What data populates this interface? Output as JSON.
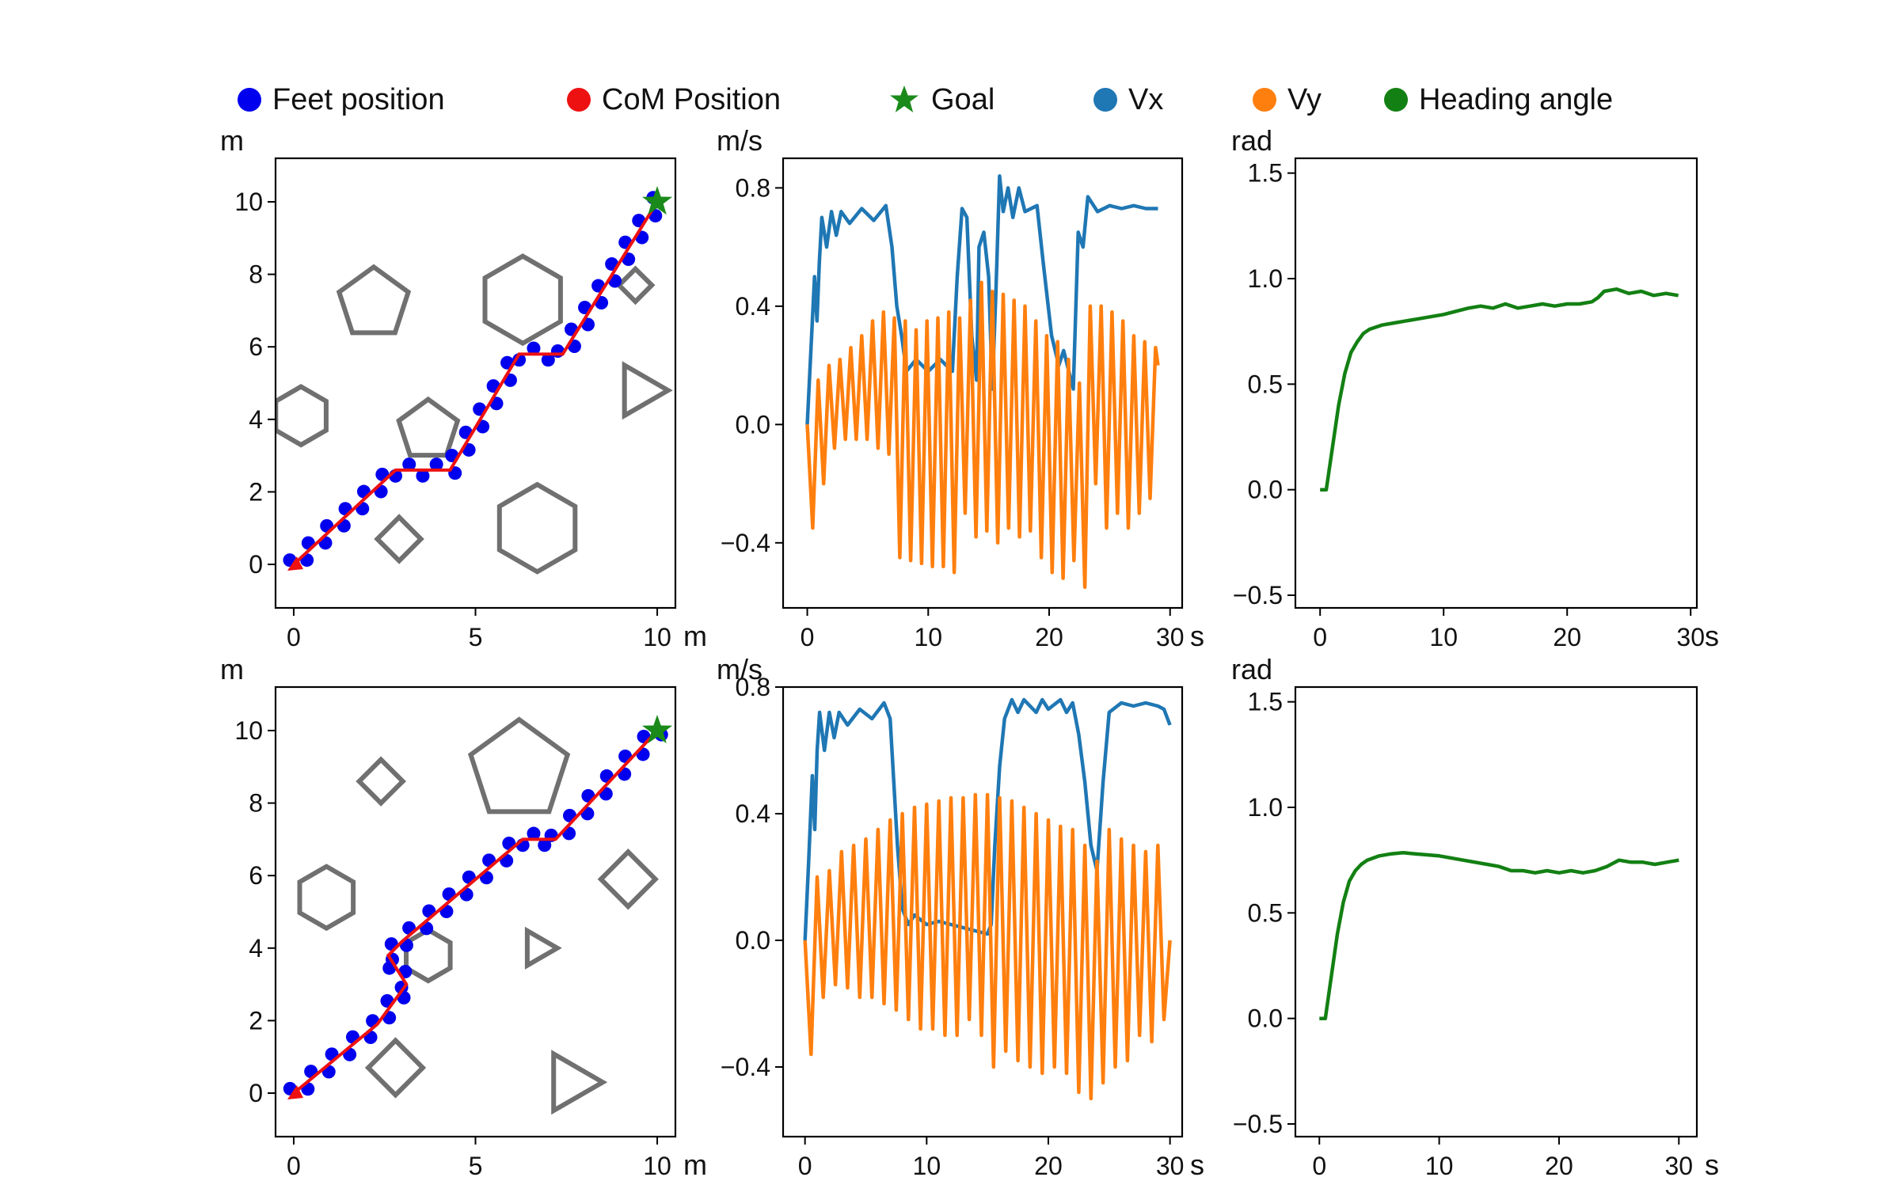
{
  "legend": [
    {
      "key": "feet",
      "label": "Feet position",
      "color": "#0000ee",
      "marker": "circle"
    },
    {
      "key": "com",
      "label": "CoM Position",
      "color": "#ee1111",
      "marker": "circle"
    },
    {
      "key": "goal",
      "label": "Goal",
      "color": "#1a8a1a",
      "marker": "star"
    },
    {
      "key": "vx",
      "label": "Vx",
      "color": "#1f77b4",
      "marker": "circle"
    },
    {
      "key": "vy",
      "label": "Vy",
      "color": "#ff7f0e",
      "marker": "circle"
    },
    {
      "key": "heading",
      "label": "Heading angle",
      "color": "#138013",
      "marker": "circle"
    }
  ],
  "chart_data": [
    {
      "id": "path-top",
      "type": "scatter",
      "title": "",
      "xlabel": "m",
      "ylabel": "m",
      "xlim": [
        -0.5,
        10.5
      ],
      "ylim": [
        -1.2,
        11.2
      ],
      "xticks": [
        0,
        5,
        10
      ],
      "yticks": [
        0,
        2,
        4,
        6,
        8,
        10
      ],
      "goal": [
        10,
        10
      ],
      "waypoints": [
        [
          0,
          0
        ],
        [
          2.8,
          2.6
        ],
        [
          4.3,
          2.6
        ],
        [
          6.2,
          5.8
        ],
        [
          7.4,
          5.8
        ],
        [
          10,
          10
        ]
      ],
      "obstacles": [
        {
          "sides": 5,
          "center": [
            2.2,
            7.2
          ],
          "radius": 1.0
        },
        {
          "sides": 6,
          "center": [
            6.3,
            7.3
          ],
          "radius": 1.2
        },
        {
          "sides": 4,
          "center": [
            9.4,
            7.7
          ],
          "radius": 0.45
        },
        {
          "sides": 6,
          "center": [
            0.2,
            4.1
          ],
          "radius": 0.8
        },
        {
          "sides": 5,
          "center": [
            3.7,
            3.7
          ],
          "radius": 0.85
        },
        {
          "sides": 3,
          "center": [
            9.5,
            4.8
          ],
          "radius": 0.8
        },
        {
          "sides": 4,
          "center": [
            2.9,
            0.7
          ],
          "radius": 0.6
        },
        {
          "sides": 6,
          "center": [
            6.7,
            1.0
          ],
          "radius": 1.2
        }
      ]
    },
    {
      "id": "vel-top",
      "type": "line",
      "title": "",
      "xlabel": "s",
      "ylabel": "m/s",
      "xlim": [
        -2,
        31
      ],
      "ylim": [
        -0.62,
        0.9
      ],
      "xticks": [
        0,
        10,
        20,
        30
      ],
      "yticks": [
        -0.4,
        0.0,
        0.4,
        0.8
      ],
      "series": [
        {
          "name": "Vx",
          "color": "#1f77b4",
          "x": [
            0,
            0.3,
            0.6,
            0.8,
            1,
            1.2,
            1.6,
            2,
            2.4,
            2.8,
            3.5,
            4.5,
            5.5,
            6.5,
            7,
            7.4,
            7.8,
            8.2,
            9,
            10,
            11,
            12,
            12.4,
            12.8,
            13.2,
            13.6,
            14,
            14.2,
            14.6,
            15,
            15.3,
            15.6,
            15.9,
            16.2,
            16.6,
            17,
            17.5,
            18,
            19,
            19.5,
            20.2,
            20.8,
            21.2,
            22,
            22.4,
            22.8,
            23.2,
            24,
            25,
            26,
            27,
            28,
            29
          ],
          "y": [
            0.0,
            0.25,
            0.5,
            0.35,
            0.55,
            0.7,
            0.6,
            0.72,
            0.64,
            0.72,
            0.68,
            0.73,
            0.69,
            0.74,
            0.6,
            0.4,
            0.3,
            0.18,
            0.22,
            0.18,
            0.22,
            0.18,
            0.5,
            0.73,
            0.7,
            0.3,
            0.15,
            0.6,
            0.65,
            0.5,
            0.12,
            0.45,
            0.84,
            0.72,
            0.8,
            0.7,
            0.8,
            0.72,
            0.74,
            0.55,
            0.3,
            0.2,
            0.25,
            0.12,
            0.65,
            0.6,
            0.77,
            0.72,
            0.74,
            0.73,
            0.74,
            0.73,
            0.73
          ]
        },
        {
          "name": "Vy",
          "color": "#ff7f0e",
          "x": [
            0,
            0.45,
            0.9,
            1.35,
            1.8,
            2.25,
            2.7,
            3.15,
            3.6,
            4.05,
            4.5,
            4.95,
            5.4,
            5.85,
            6.3,
            6.75,
            7.2,
            7.65,
            8.1,
            8.55,
            9,
            9.45,
            9.9,
            10.35,
            10.8,
            11.25,
            11.7,
            12.15,
            12.6,
            13.05,
            13.5,
            13.95,
            14.4,
            14.85,
            15.3,
            15.75,
            16.2,
            16.65,
            17.1,
            17.55,
            18,
            18.45,
            18.9,
            19.35,
            19.8,
            20.25,
            20.7,
            21.15,
            21.6,
            22.05,
            22.5,
            22.95,
            23.4,
            23.85,
            24.3,
            24.75,
            25.2,
            25.65,
            26.1,
            26.55,
            27,
            27.45,
            27.9,
            28.35,
            28.8,
            29
          ],
          "y": [
            0.0,
            -0.35,
            0.15,
            -0.2,
            0.2,
            -0.08,
            0.22,
            -0.05,
            0.26,
            -0.05,
            0.3,
            -0.05,
            0.35,
            -0.08,
            0.38,
            -0.1,
            0.36,
            -0.45,
            0.35,
            -0.46,
            0.32,
            -0.47,
            0.35,
            -0.48,
            0.36,
            -0.48,
            0.38,
            -0.5,
            0.36,
            -0.3,
            0.42,
            -0.38,
            0.48,
            -0.36,
            0.45,
            -0.4,
            0.44,
            -0.35,
            0.42,
            -0.38,
            0.4,
            -0.36,
            0.35,
            -0.45,
            0.3,
            -0.5,
            0.28,
            -0.52,
            0.22,
            -0.46,
            0.14,
            -0.55,
            0.4,
            -0.2,
            0.4,
            -0.35,
            0.38,
            -0.3,
            0.35,
            -0.35,
            0.3,
            -0.3,
            0.28,
            -0.25,
            0.26,
            0.2
          ]
        }
      ]
    },
    {
      "id": "head-top",
      "type": "line",
      "title": "",
      "xlabel": "s",
      "ylabel": "rad",
      "xlim": [
        -2,
        30.5
      ],
      "ylim": [
        -0.56,
        1.57
      ],
      "xticks": [
        0,
        10,
        20,
        30
      ],
      "yticks": [
        -0.5,
        0.0,
        0.5,
        1.0,
        1.5
      ],
      "series": [
        {
          "name": "Heading angle",
          "color": "#138013",
          "x": [
            0,
            0.5,
            1,
            1.5,
            2,
            2.5,
            3,
            3.5,
            4,
            5,
            6,
            7,
            8,
            10,
            12,
            13,
            14,
            15,
            16,
            17,
            18,
            19,
            20,
            21,
            22,
            22.5,
            23,
            24,
            25,
            26,
            27,
            28,
            29
          ],
          "y": [
            0.0,
            0.0,
            0.2,
            0.4,
            0.55,
            0.65,
            0.7,
            0.74,
            0.76,
            0.78,
            0.79,
            0.8,
            0.81,
            0.83,
            0.86,
            0.87,
            0.86,
            0.88,
            0.86,
            0.87,
            0.88,
            0.87,
            0.88,
            0.88,
            0.89,
            0.91,
            0.94,
            0.95,
            0.93,
            0.94,
            0.92,
            0.93,
            0.92
          ]
        }
      ]
    },
    {
      "id": "path-bot",
      "type": "scatter",
      "title": "",
      "xlabel": "m",
      "ylabel": "m",
      "xlim": [
        -0.5,
        10.5
      ],
      "ylim": [
        -1.2,
        11.2
      ],
      "xticks": [
        0,
        5,
        10
      ],
      "yticks": [
        0,
        2,
        4,
        6,
        8,
        10
      ],
      "goal": [
        10,
        10
      ],
      "waypoints": [
        [
          0,
          0
        ],
        [
          2.3,
          1.9
        ],
        [
          3.1,
          3.0
        ],
        [
          2.6,
          3.8
        ],
        [
          3.0,
          4.2
        ],
        [
          6.3,
          7.0
        ],
        [
          7.2,
          7.0
        ],
        [
          10,
          10
        ]
      ],
      "obstacles": [
        {
          "sides": 4,
          "center": [
            2.4,
            8.6
          ],
          "radius": 0.6
        },
        {
          "sides": 5,
          "center": [
            6.2,
            8.9
          ],
          "radius": 1.4
        },
        {
          "sides": 6,
          "center": [
            0.9,
            5.4
          ],
          "radius": 0.85
        },
        {
          "sides": 6,
          "center": [
            3.7,
            3.8
          ],
          "radius": 0.7
        },
        {
          "sides": 3,
          "center": [
            6.7,
            4.0
          ],
          "radius": 0.55
        },
        {
          "sides": 4,
          "center": [
            9.2,
            5.9
          ],
          "radius": 0.75
        },
        {
          "sides": 4,
          "center": [
            2.8,
            0.7
          ],
          "radius": 0.75
        },
        {
          "sides": 3,
          "center": [
            7.6,
            0.3
          ],
          "radius": 0.9
        }
      ]
    },
    {
      "id": "vel-bot",
      "type": "line",
      "title": "",
      "xlabel": "s",
      "ylabel": "m/s",
      "xlim": [
        -1.8,
        31
      ],
      "ylim": [
        -0.62,
        0.8
      ],
      "xticks": [
        0,
        10,
        20,
        30
      ],
      "yticks": [
        -0.4,
        0.0,
        0.4,
        0.8
      ],
      "series": [
        {
          "name": "Vx",
          "color": "#1f77b4",
          "x": [
            0,
            0.3,
            0.6,
            0.8,
            1,
            1.2,
            1.6,
            2,
            2.4,
            2.8,
            3.5,
            4.5,
            5.5,
            6.5,
            7,
            7.3,
            7.6,
            8,
            8.5,
            9,
            10,
            11,
            12,
            13,
            14,
            15,
            15.3,
            15.6,
            16,
            16.4,
            17,
            17.5,
            18,
            19,
            19.5,
            20,
            21,
            21.5,
            22,
            22.5,
            23,
            23.5,
            24,
            24.5,
            25,
            26,
            27,
            28,
            29,
            29.5,
            30
          ],
          "y": [
            0.0,
            0.25,
            0.52,
            0.35,
            0.6,
            0.72,
            0.6,
            0.72,
            0.64,
            0.72,
            0.68,
            0.73,
            0.7,
            0.75,
            0.7,
            0.5,
            0.3,
            0.1,
            0.05,
            0.08,
            0.05,
            0.06,
            0.05,
            0.04,
            0.03,
            0.02,
            0.05,
            0.3,
            0.55,
            0.7,
            0.76,
            0.72,
            0.76,
            0.72,
            0.76,
            0.73,
            0.76,
            0.72,
            0.75,
            0.65,
            0.5,
            0.3,
            0.22,
            0.5,
            0.72,
            0.75,
            0.74,
            0.75,
            0.74,
            0.73,
            0.68
          ]
        },
        {
          "name": "Vy",
          "color": "#ff7f0e",
          "x": [
            0,
            0.5,
            1,
            1.5,
            2,
            2.5,
            3,
            3.5,
            4,
            4.5,
            5,
            5.5,
            6,
            6.5,
            7,
            7.5,
            8,
            8.5,
            9,
            9.5,
            10,
            10.5,
            11,
            11.5,
            12,
            12.5,
            13,
            13.5,
            14,
            14.5,
            15,
            15.5,
            16,
            16.5,
            17,
            17.5,
            18,
            18.5,
            19,
            19.5,
            20,
            20.5,
            21,
            21.5,
            22,
            22.5,
            23,
            23.5,
            24,
            24.5,
            25,
            25.5,
            26,
            26.5,
            27,
            27.5,
            28,
            28.5,
            29,
            29.5,
            30
          ],
          "y": [
            0.0,
            -0.36,
            0.2,
            -0.18,
            0.22,
            -0.14,
            0.28,
            -0.15,
            0.3,
            -0.18,
            0.32,
            -0.18,
            0.35,
            -0.2,
            0.38,
            -0.22,
            0.4,
            -0.25,
            0.42,
            -0.28,
            0.43,
            -0.28,
            0.44,
            -0.3,
            0.45,
            -0.3,
            0.45,
            -0.25,
            0.46,
            -0.3,
            0.46,
            -0.4,
            0.45,
            -0.35,
            0.44,
            -0.38,
            0.42,
            -0.4,
            0.4,
            -0.42,
            0.38,
            -0.4,
            0.36,
            -0.42,
            0.35,
            -0.48,
            0.3,
            -0.5,
            0.25,
            -0.45,
            0.35,
            -0.4,
            0.32,
            -0.38,
            0.3,
            -0.3,
            0.28,
            -0.32,
            0.3,
            -0.25,
            0.0
          ]
        }
      ]
    },
    {
      "id": "head-bot",
      "type": "line",
      "title": "",
      "xlabel": "s",
      "ylabel": "rad",
      "xlim": [
        -2,
        31.5
      ],
      "ylim": [
        -0.56,
        1.57
      ],
      "xticks": [
        0,
        10,
        20,
        30
      ],
      "yticks": [
        -0.5,
        0.0,
        0.5,
        1.0,
        1.5
      ],
      "series": [
        {
          "name": "Heading angle",
          "color": "#138013",
          "x": [
            0,
            0.5,
            1,
            1.5,
            2,
            2.5,
            3,
            3.5,
            4,
            5,
            6,
            7,
            8,
            10,
            12,
            14,
            15,
            16,
            17,
            18,
            19,
            20,
            21,
            22,
            23,
            24,
            25,
            26,
            27,
            28,
            29,
            30
          ],
          "y": [
            0.0,
            0.0,
            0.2,
            0.4,
            0.55,
            0.65,
            0.7,
            0.73,
            0.75,
            0.77,
            0.78,
            0.785,
            0.78,
            0.77,
            0.75,
            0.73,
            0.72,
            0.7,
            0.7,
            0.69,
            0.7,
            0.69,
            0.7,
            0.69,
            0.7,
            0.72,
            0.75,
            0.74,
            0.74,
            0.73,
            0.74,
            0.75
          ]
        }
      ]
    }
  ]
}
